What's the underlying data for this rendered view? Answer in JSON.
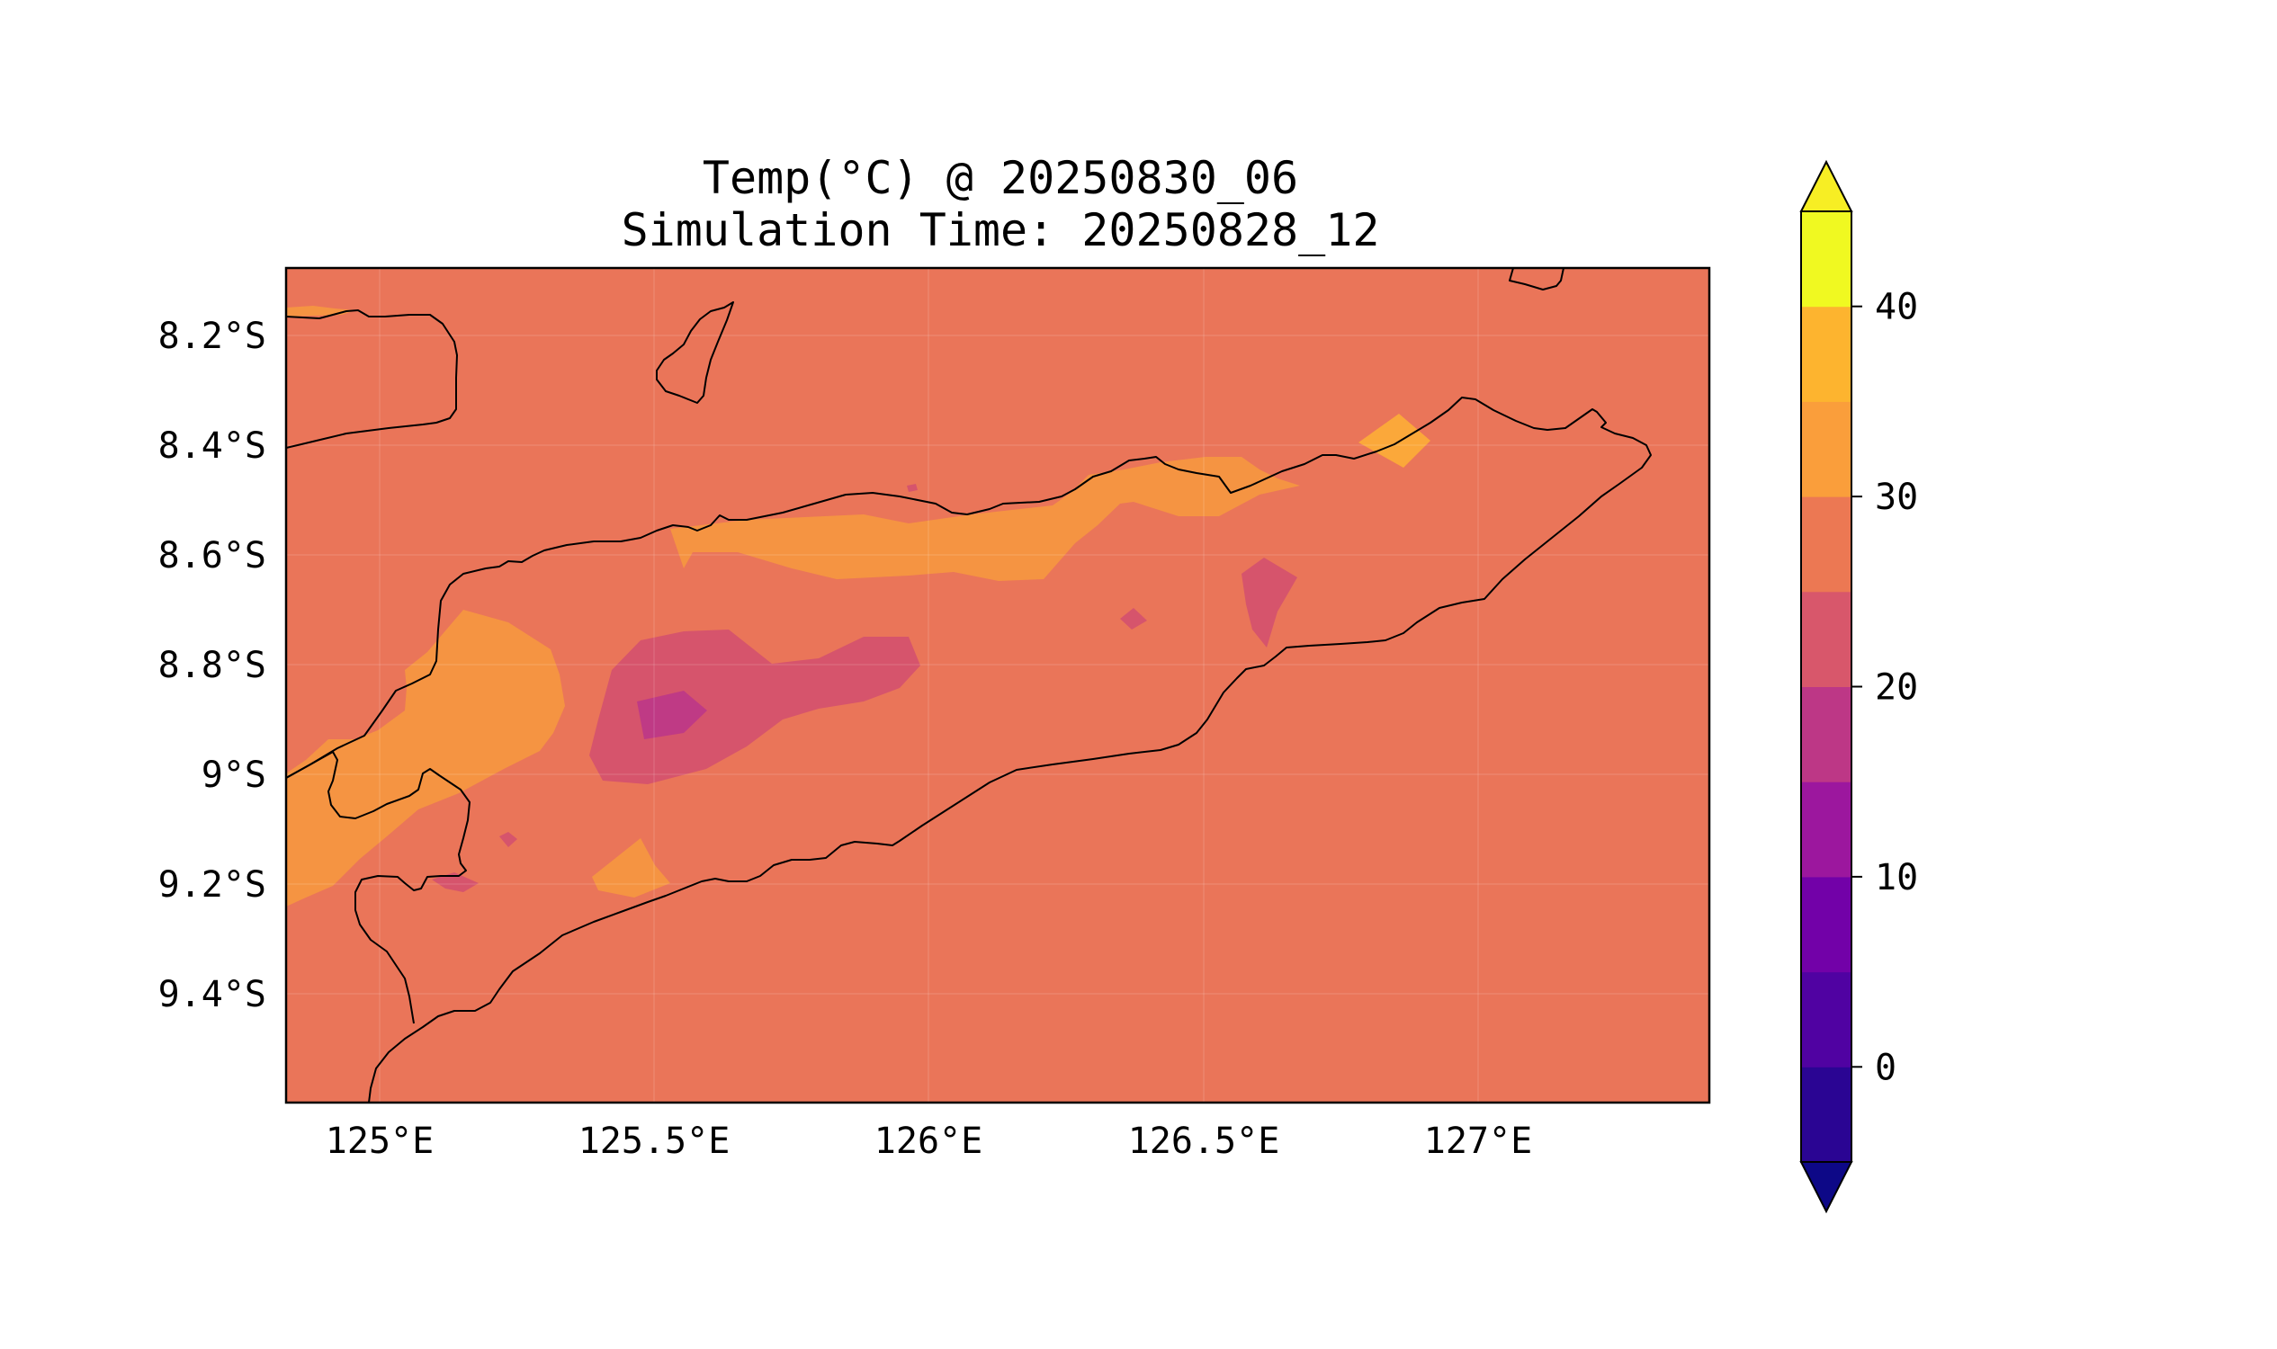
{
  "title": {
    "line1": "Temp(°C) @ 20250830_06",
    "line2": "Simulation Time: 20250828_12"
  },
  "map": {
    "x_ticks": [
      "125°E",
      "125.5°E",
      "126°E",
      "126.5°E",
      "127°E"
    ],
    "y_ticks": [
      "8.2°S",
      "8.4°S",
      "8.6°S",
      "8.8°S",
      "9°S",
      "9.2°S",
      "9.4°S"
    ],
    "lon_range": [
      124.83,
      127.42
    ],
    "lat_range": [
      -9.59,
      -8.07
    ],
    "variable": "Temp(°C)",
    "gridlines": true
  },
  "colorbar": {
    "levels": [
      -5,
      0,
      5,
      10,
      15,
      20,
      25,
      30,
      35,
      40,
      45
    ],
    "colors": [
      "#2a0593",
      "#5002a2",
      "#7201a8",
      "#9c179e",
      "#bd3786",
      "#d8576b",
      "#ec7853",
      "#fa9e3b",
      "#fdb42f",
      "#f0f921"
    ],
    "extend_min_color": "#0d0887",
    "extend_max_color": "#f7ee24",
    "tick_labels": [
      "0",
      "10",
      "20",
      "30",
      "40"
    ],
    "tick_values": [
      0,
      10,
      20,
      30,
      40
    ]
  },
  "field": {
    "background_band": "25–30",
    "bands_present": [
      "15–20",
      "20–25",
      "25–30",
      "30–35",
      "35–40"
    ]
  }
}
